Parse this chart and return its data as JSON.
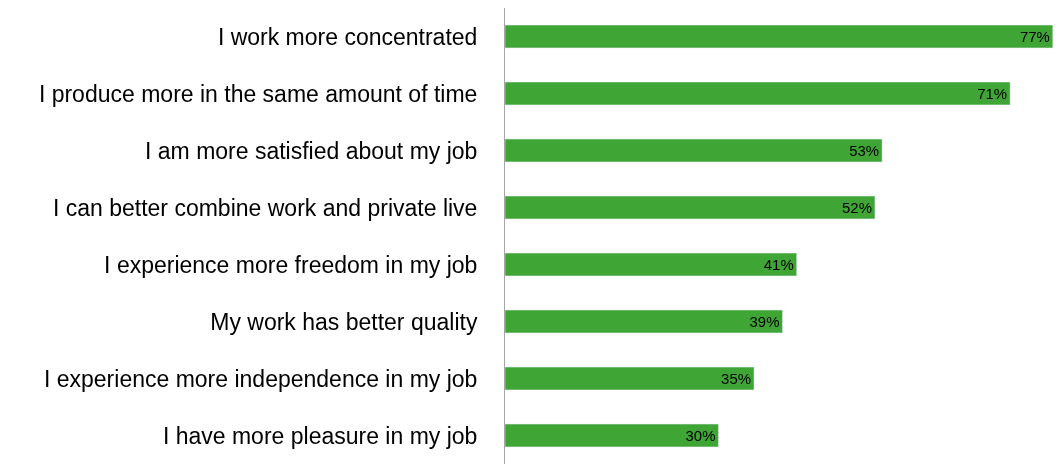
{
  "chart_data": {
    "type": "bar",
    "orientation": "horizontal",
    "categories": [
      "I work more concentrated",
      "I produce more in the same amount of time",
      "I am more satisfied about my job",
      "I can better combine work and private live",
      "I experience more freedom in my job",
      "My work has better quality",
      "I experience more independence in my job",
      "I have more pleasure in my job"
    ],
    "values": [
      77,
      71,
      53,
      52,
      41,
      39,
      35,
      30
    ],
    "value_labels": [
      "77%",
      "71%",
      "53%",
      "52%",
      "41%",
      "39%",
      "35%",
      "30%"
    ],
    "color": "#3fa535",
    "xlim": [
      0,
      77
    ]
  }
}
